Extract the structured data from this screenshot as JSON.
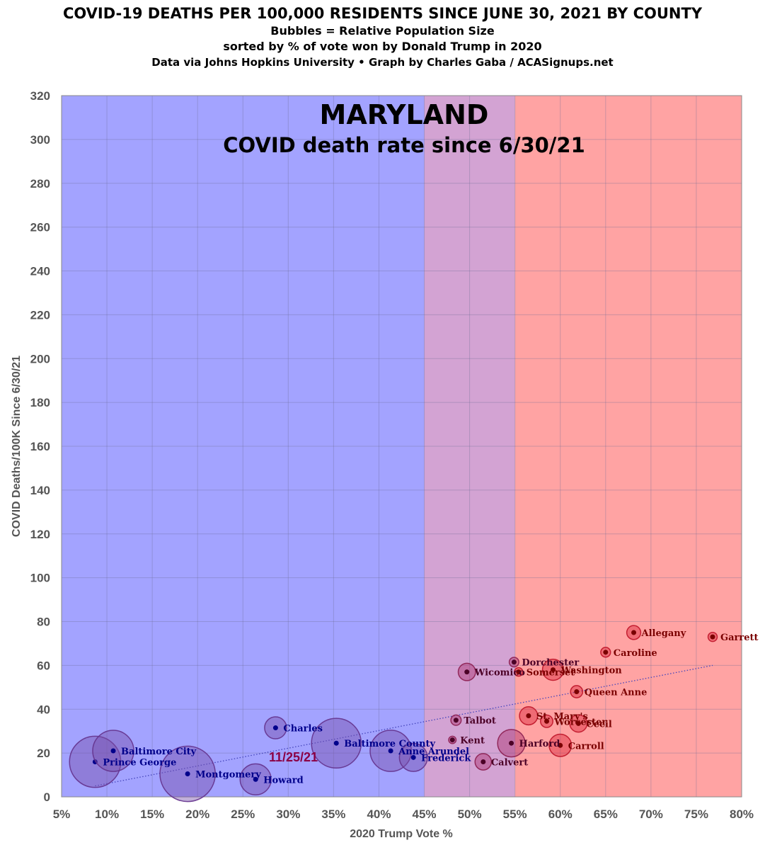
{
  "header": {
    "title": "COVID-19 DEATHS PER 100,000 RESIDENTS SINCE JUNE 30, 2021 BY COUNTY",
    "line2": "Bubbles = Relative Population Size",
    "line3": "sorted by % of vote won by Donald Trump in 2020",
    "line4": "Data via Johns Hopkins University • Graph by Charles Gaba / ACASignups.net"
  },
  "chart_data": {
    "type": "scatter",
    "title": "MARYLAND",
    "subtitle": "COVID death rate since 6/30/21",
    "annotation": "11/25/21",
    "xlabel": "2020 Trump Vote %",
    "ylabel": "COVID Deaths/100K Since 6/30/21",
    "xlim": [
      5,
      80
    ],
    "ylim": [
      0,
      320
    ],
    "x_ticks": [
      "5%",
      "10%",
      "15%",
      "20%",
      "25%",
      "30%",
      "35%",
      "40%",
      "45%",
      "50%",
      "55%",
      "60%",
      "65%",
      "70%",
      "75%",
      "80%"
    ],
    "y_ticks": [
      "0",
      "20",
      "40",
      "60",
      "80",
      "100",
      "120",
      "140",
      "160",
      "180",
      "200",
      "220",
      "240",
      "260",
      "280",
      "300",
      "320"
    ],
    "grid": true,
    "bands": [
      {
        "from": 5,
        "to": 45,
        "color": "#a3a3ff"
      },
      {
        "from": 45,
        "to": 55,
        "color": "#d3a3d3"
      },
      {
        "from": 55,
        "to": 80,
        "color": "#ffa3a3"
      }
    ],
    "colors": {
      "dem": "#00008b",
      "mid": "#4b0026",
      "gop": "#7a0000",
      "annotation": "#8b0045",
      "trendline": "#4444bb"
    },
    "trendline": {
      "x": [
        8.7,
        76.8
      ],
      "y": [
        5,
        60
      ]
    },
    "counties": [
      {
        "name": "Prince George",
        "x": 8.7,
        "y": 16,
        "pop": 909
      },
      {
        "name": "Baltimore City",
        "x": 10.7,
        "y": 21,
        "pop": 586
      },
      {
        "name": "Montgomery",
        "x": 18.9,
        "y": 10.5,
        "pop": 1062
      },
      {
        "name": "Howard",
        "x": 26.4,
        "y": 8,
        "pop": 333
      },
      {
        "name": "Charles",
        "x": 28.6,
        "y": 31.5,
        "pop": 167
      },
      {
        "name": "Baltimore County",
        "x": 35.3,
        "y": 24.5,
        "pop": 854
      },
      {
        "name": "Anne Arundel",
        "x": 41.3,
        "y": 21,
        "pop": 589
      },
      {
        "name": "Frederick",
        "x": 43.8,
        "y": 18,
        "pop": 272
      },
      {
        "name": "Kent",
        "x": 48.1,
        "y": 26,
        "pop": 19
      },
      {
        "name": "Talbot",
        "x": 48.5,
        "y": 35,
        "pop": 37
      },
      {
        "name": "Wicomico",
        "x": 49.7,
        "y": 57,
        "pop": 104
      },
      {
        "name": "Calvert",
        "x": 51.5,
        "y": 16,
        "pop": 93
      },
      {
        "name": "Harford",
        "x": 54.6,
        "y": 24.5,
        "pop": 261
      },
      {
        "name": "Dorchester",
        "x": 54.9,
        "y": 61.5,
        "pop": 32
      },
      {
        "name": "Somerset",
        "x": 55.4,
        "y": 57,
        "pop": 25
      },
      {
        "name": "St. Mary's",
        "x": 56.5,
        "y": 37,
        "pop": 114
      },
      {
        "name": "Worcester",
        "x": 58.5,
        "y": 34.5,
        "pop": 53
      },
      {
        "name": "Washington",
        "x": 59.2,
        "y": 58,
        "pop": 155
      },
      {
        "name": "Carroll",
        "x": 60,
        "y": 23.5,
        "pop": 173
      },
      {
        "name": "Queen Anne",
        "x": 61.8,
        "y": 48,
        "pop": 51
      },
      {
        "name": "Cecil",
        "x": 62,
        "y": 33.5,
        "pop": 104
      },
      {
        "name": "Caroline",
        "x": 65,
        "y": 66,
        "pop": 33
      },
      {
        "name": "Allegany",
        "x": 68.1,
        "y": 75,
        "pop": 68
      },
      {
        "name": "Garrett",
        "x": 76.8,
        "y": 73,
        "pop": 29
      }
    ]
  }
}
